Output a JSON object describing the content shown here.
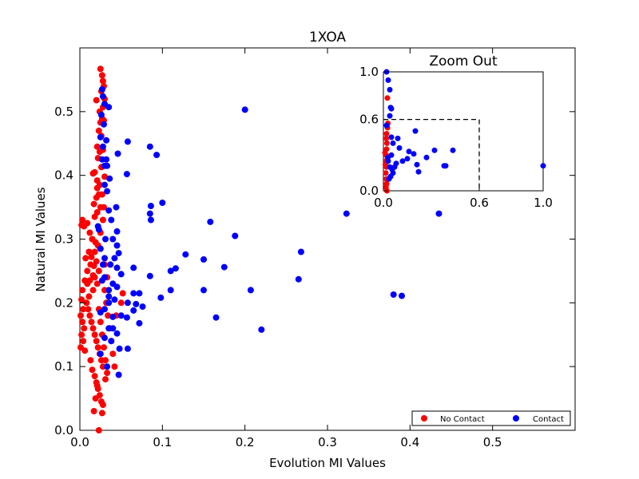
{
  "chart_data": {
    "type": "scatter",
    "title": "1XOA",
    "xlabel": "Evolution MI Values",
    "ylabel": "Natural MI Values",
    "xlim": [
      0,
      0.6
    ],
    "ylim": [
      0,
      0.6
    ],
    "xticks": [
      "0.0",
      "0.1",
      "0.2",
      "0.3",
      "0.4",
      "0.5"
    ],
    "yticks": [
      "0.0",
      "0.1",
      "0.2",
      "0.3",
      "0.4",
      "0.5"
    ],
    "grid": false,
    "legend_position": "bottom-right",
    "series": [
      {
        "name": "No Contact",
        "color": "#ff0000",
        "points": [
          [
            0.025,
            0.567
          ],
          [
            0.027,
            0.557
          ],
          [
            0.028,
            0.548
          ],
          [
            0.029,
            0.54
          ],
          [
            0.026,
            0.532
          ],
          [
            0.02,
            0.518
          ],
          [
            0.03,
            0.52
          ],
          [
            0.028,
            0.507
          ],
          [
            0.024,
            0.5
          ],
          [
            0.027,
            0.489
          ],
          [
            0.025,
            0.483
          ],
          [
            0.029,
            0.486
          ],
          [
            0.023,
            0.47
          ],
          [
            0.026,
            0.462
          ],
          [
            0.021,
            0.445
          ],
          [
            0.024,
            0.437
          ],
          [
            0.028,
            0.44
          ],
          [
            0.022,
            0.427
          ],
          [
            0.026,
            0.413
          ],
          [
            0.018,
            0.405
          ],
          [
            0.016,
            0.403
          ],
          [
            0.03,
            0.398
          ],
          [
            0.021,
            0.392
          ],
          [
            0.024,
            0.385
          ],
          [
            0.027,
            0.37
          ],
          [
            0.023,
            0.37
          ],
          [
            0.02,
            0.365
          ],
          [
            0.017,
            0.355
          ],
          [
            0.025,
            0.35
          ],
          [
            0.021,
            0.342
          ],
          [
            0.018,
            0.335
          ],
          [
            0.005,
            0.32
          ],
          [
            0.009,
            0.325
          ],
          [
            0.003,
            0.33
          ],
          [
            0.002,
            0.322
          ],
          [
            0.012,
            0.31
          ],
          [
            0.015,
            0.3
          ],
          [
            0.019,
            0.295
          ],
          [
            0.022,
            0.29
          ],
          [
            0.025,
            0.285
          ],
          [
            0.018,
            0.28
          ],
          [
            0.014,
            0.272
          ],
          [
            0.02,
            0.265
          ],
          [
            0.017,
            0.258
          ],
          [
            0.023,
            0.25
          ],
          [
            0.016,
            0.243
          ],
          [
            0.012,
            0.235
          ],
          [
            0.021,
            0.23
          ],
          [
            0.009,
            0.23
          ],
          [
            0.006,
            0.235
          ],
          [
            0.003,
            0.22
          ],
          [
            0.002,
            0.205
          ],
          [
            0.004,
            0.19
          ],
          [
            0.001,
            0.18
          ],
          [
            0.003,
            0.17
          ],
          [
            0.005,
            0.16
          ],
          [
            0.002,
            0.15
          ],
          [
            0.004,
            0.14
          ],
          [
            0.001,
            0.13
          ],
          [
            0.006,
            0.125
          ],
          [
            0.008,
            0.2
          ],
          [
            0.01,
            0.19
          ],
          [
            0.012,
            0.18
          ],
          [
            0.014,
            0.17
          ],
          [
            0.016,
            0.16
          ],
          [
            0.018,
            0.15
          ],
          [
            0.02,
            0.14
          ],
          [
            0.022,
            0.13
          ],
          [
            0.024,
            0.12
          ],
          [
            0.026,
            0.11
          ],
          [
            0.028,
            0.1
          ],
          [
            0.015,
            0.095
          ],
          [
            0.018,
            0.085
          ],
          [
            0.02,
            0.075
          ],
          [
            0.022,
            0.065
          ],
          [
            0.024,
            0.055
          ],
          [
            0.026,
            0.045
          ],
          [
            0.028,
            0.04
          ],
          [
            0.017,
            0.03
          ],
          [
            0.027,
            0.027
          ],
          [
            0.023,
            0.0
          ],
          [
            0.019,
            0.05
          ],
          [
            0.013,
            0.11
          ],
          [
            0.011,
            0.21
          ],
          [
            0.009,
            0.25
          ],
          [
            0.007,
            0.27
          ],
          [
            0.013,
            0.26
          ],
          [
            0.03,
            0.22
          ],
          [
            0.032,
            0.2
          ],
          [
            0.034,
            0.18
          ],
          [
            0.036,
            0.16
          ],
          [
            0.038,
            0.14
          ],
          [
            0.04,
            0.12
          ],
          [
            0.042,
            0.1
          ],
          [
            0.031,
            0.08
          ],
          [
            0.044,
            0.18
          ],
          [
            0.05,
            0.2
          ],
          [
            0.052,
            0.215
          ],
          [
            0.025,
            0.31
          ],
          [
            0.028,
            0.33
          ],
          [
            0.03,
            0.26
          ],
          [
            0.033,
            0.24
          ],
          [
            0.029,
            0.35
          ],
          [
            0.021,
            0.38
          ],
          [
            0.015,
            0.3
          ],
          [
            0.011,
            0.28
          ],
          [
            0.016,
            0.22
          ],
          [
            0.018,
            0.24
          ],
          [
            0.023,
            0.19
          ],
          [
            0.025,
            0.17
          ],
          [
            0.027,
            0.15
          ],
          [
            0.029,
            0.13
          ],
          [
            0.031,
            0.11
          ],
          [
            0.033,
            0.09
          ],
          [
            0.021,
            0.07
          ]
        ]
      },
      {
        "name": "Contact",
        "color": "#0000ff",
        "points": [
          [
            0.027,
            0.535
          ],
          [
            0.028,
            0.524
          ],
          [
            0.03,
            0.512
          ],
          [
            0.035,
            0.507
          ],
          [
            0.026,
            0.495
          ],
          [
            0.029,
            0.48
          ],
          [
            0.025,
            0.46
          ],
          [
            0.032,
            0.455
          ],
          [
            0.058,
            0.453
          ],
          [
            0.028,
            0.445
          ],
          [
            0.046,
            0.434
          ],
          [
            0.085,
            0.445
          ],
          [
            0.093,
            0.432
          ],
          [
            0.027,
            0.425
          ],
          [
            0.032,
            0.425
          ],
          [
            0.033,
            0.415
          ],
          [
            0.03,
            0.415
          ],
          [
            0.057,
            0.402
          ],
          [
            0.036,
            0.395
          ],
          [
            0.03,
            0.385
          ],
          [
            0.033,
            0.375
          ],
          [
            0.1,
            0.357
          ],
          [
            0.044,
            0.35
          ],
          [
            0.086,
            0.352
          ],
          [
            0.085,
            0.34
          ],
          [
            0.035,
            0.345
          ],
          [
            0.086,
            0.33
          ],
          [
            0.158,
            0.327
          ],
          [
            0.022,
            0.32
          ],
          [
            0.023,
            0.315
          ],
          [
            0.045,
            0.312
          ],
          [
            0.188,
            0.305
          ],
          [
            0.2,
            0.503
          ],
          [
            0.04,
            0.3
          ],
          [
            0.045,
            0.29
          ],
          [
            0.025,
            0.285
          ],
          [
            0.047,
            0.278
          ],
          [
            0.03,
            0.27
          ],
          [
            0.128,
            0.276
          ],
          [
            0.268,
            0.28
          ],
          [
            0.15,
            0.268
          ],
          [
            0.065,
            0.255
          ],
          [
            0.045,
            0.255
          ],
          [
            0.116,
            0.254
          ],
          [
            0.11,
            0.25
          ],
          [
            0.175,
            0.256
          ],
          [
            0.05,
            0.245
          ],
          [
            0.085,
            0.242
          ],
          [
            0.03,
            0.24
          ],
          [
            0.265,
            0.237
          ],
          [
            0.027,
            0.235
          ],
          [
            0.04,
            0.23
          ],
          [
            0.045,
            0.225
          ],
          [
            0.15,
            0.22
          ],
          [
            0.207,
            0.22
          ],
          [
            0.11,
            0.22
          ],
          [
            0.065,
            0.215
          ],
          [
            0.072,
            0.215
          ],
          [
            0.035,
            0.21
          ],
          [
            0.098,
            0.208
          ],
          [
            0.042,
            0.205
          ],
          [
            0.058,
            0.2
          ],
          [
            0.035,
            0.2
          ],
          [
            0.068,
            0.198
          ],
          [
            0.076,
            0.194
          ],
          [
            0.065,
            0.188
          ],
          [
            0.025,
            0.185
          ],
          [
            0.05,
            0.18
          ],
          [
            0.04,
            0.178
          ],
          [
            0.057,
            0.177
          ],
          [
            0.165,
            0.177
          ],
          [
            0.072,
            0.168
          ],
          [
            0.22,
            0.158
          ],
          [
            0.035,
            0.16
          ],
          [
            0.045,
            0.152
          ],
          [
            0.03,
            0.145
          ],
          [
            0.038,
            0.14
          ],
          [
            0.048,
            0.128
          ],
          [
            0.058,
            0.128
          ],
          [
            0.025,
            0.12
          ],
          [
            0.033,
            0.1
          ],
          [
            0.047,
            0.087
          ],
          [
            0.323,
            0.34
          ],
          [
            0.435,
            0.34
          ],
          [
            0.38,
            0.213
          ],
          [
            0.39,
            0.211
          ],
          [
            0.042,
            0.27
          ],
          [
            0.037,
            0.26
          ],
          [
            0.031,
            0.3
          ],
          [
            0.028,
            0.26
          ],
          [
            0.038,
            0.33
          ],
          [
            0.035,
            0.22
          ],
          [
            0.03,
            0.19
          ],
          [
            0.04,
            0.16
          ]
        ]
      }
    ],
    "inset": {
      "title": "Zoom Out",
      "xlim": [
        0,
        1.0
      ],
      "ylim": [
        0,
        1.0
      ],
      "xticks": [
        "0.0",
        "0.6",
        "1.0"
      ],
      "yticks": [
        "0.0",
        "0.6",
        "1.0"
      ],
      "zoom_box": [
        0.6,
        0.6
      ],
      "series": [
        {
          "name": "No Contact",
          "color": "#ff0000",
          "points": [
            [
              0.025,
              0.78
            ],
            [
              0.028,
              0.567
            ],
            [
              0.026,
              0.53
            ],
            [
              0.02,
              0.48
            ],
            [
              0.018,
              0.44
            ],
            [
              0.022,
              0.4
            ],
            [
              0.02,
              0.35
            ],
            [
              0.018,
              0.3
            ],
            [
              0.017,
              0.25
            ],
            [
              0.019,
              0.2
            ],
            [
              0.015,
              0.15
            ],
            [
              0.018,
              0.1
            ],
            [
              0.02,
              0.06
            ],
            [
              0.016,
              0.03
            ],
            [
              0.022,
              0.0
            ],
            [
              0.012,
              0.22
            ],
            [
              0.025,
              0.27
            ],
            [
              0.01,
              0.32
            ]
          ]
        },
        {
          "name": "Contact",
          "color": "#0000ff",
          "points": [
            [
              0.02,
              1.0
            ],
            [
              0.03,
              0.93
            ],
            [
              0.04,
              0.85
            ],
            [
              0.045,
              0.7
            ],
            [
              0.05,
              0.69
            ],
            [
              0.04,
              0.63
            ],
            [
              0.02,
              0.55
            ],
            [
              0.2,
              0.503
            ],
            [
              0.05,
              0.45
            ],
            [
              0.09,
              0.44
            ],
            [
              0.06,
              0.4
            ],
            [
              0.1,
              0.36
            ],
            [
              0.16,
              0.33
            ],
            [
              0.19,
              0.31
            ],
            [
              0.32,
              0.34
            ],
            [
              0.435,
              0.34
            ],
            [
              0.27,
              0.28
            ],
            [
              0.15,
              0.27
            ],
            [
              0.21,
              0.22
            ],
            [
              0.22,
              0.16
            ],
            [
              0.38,
              0.21
            ],
            [
              0.39,
              0.21
            ],
            [
              1.0,
              0.21
            ],
            [
              0.03,
              0.25
            ],
            [
              0.04,
              0.2
            ],
            [
              0.05,
              0.3
            ],
            [
              0.06,
              0.15
            ],
            [
              0.08,
              0.23
            ],
            [
              0.12,
              0.25
            ],
            [
              0.035,
              0.1
            ],
            [
              0.045,
              0.12
            ],
            [
              0.055,
              0.18
            ],
            [
              0.07,
              0.2
            ],
            [
              0.028,
              0.28
            ]
          ]
        }
      ]
    }
  }
}
